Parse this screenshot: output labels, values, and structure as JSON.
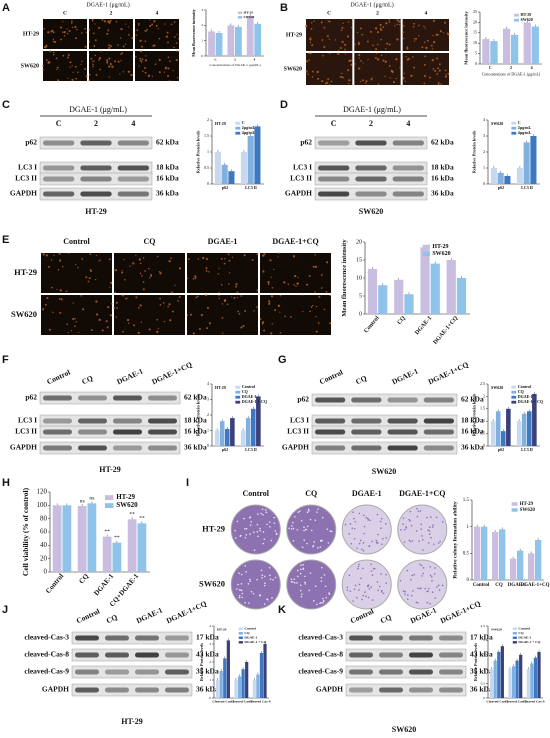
{
  "panels": [
    {
      "label": "A",
      "kind": "image",
      "title": "DGAE-1 (μg/mL)",
      "columns": [
        "C",
        "2",
        "4"
      ],
      "rows": [
        "HT-29",
        "SW620"
      ],
      "chart": {
        "type": "bar",
        "ylabel": "Mean fluorescence intensity",
        "xlabel": "Concentrations of DGAE-1 (μg/mL)",
        "categories": [
          "C",
          "2",
          "4"
        ],
        "ylim": [
          0,
          3
        ],
        "yticks": [
          0,
          1,
          2,
          3
        ],
        "series": [
          {
            "name": "HT-29",
            "color": "#c9bde0",
            "values": [
              1.6,
              2.0,
              2.6
            ]
          },
          {
            "name": "SW620",
            "color": "#8fc3ea",
            "values": [
              1.5,
              1.9,
              2.1
            ]
          }
        ]
      }
    },
    {
      "label": "B",
      "kind": "image",
      "title": "DGAE-1 (μg/mL)",
      "columns": [
        "C",
        "2",
        "4"
      ],
      "rows": [
        "HT-29",
        "SW620"
      ],
      "chart": {
        "type": "bar",
        "ylabel": "Mean fluorescence intensity",
        "xlabel": "Concentrations of DGAE-1 (μg/mL)",
        "categories": [
          "C",
          "2",
          "4"
        ],
        "ylim": [
          0,
          25
        ],
        "yticks": [
          0,
          5,
          10,
          15,
          20,
          25
        ],
        "series": [
          {
            "name": "HT-29",
            "color": "#c9bde0",
            "values": [
              12,
              17,
              20
            ]
          },
          {
            "name": "SW620",
            "color": "#8fc3ea",
            "values": [
              11,
              14,
              18
            ]
          }
        ]
      }
    },
    {
      "label": "C",
      "kind": "blot",
      "title": "DGAE-1 (μg/mL)",
      "columns": [
        "C",
        "2",
        "4"
      ],
      "rows": [
        "p62",
        "LC3 I",
        "LC3 II",
        "GAPDH"
      ],
      "kda": [
        "62 kDa",
        "18 kDa",
        "16 kDa",
        "36 kDa"
      ],
      "cell_line": "HT-29",
      "chart": {
        "type": "bar",
        "title": "HT-29",
        "ylabel": "Relative Protein levels",
        "categories": [
          "p62",
          "LC3 II"
        ],
        "ylim": [
          0,
          2
        ],
        "yticks": [
          0,
          0.5,
          1,
          1.5,
          2
        ],
        "series": [
          {
            "name": "C",
            "color": "#c8d8ee",
            "values": [
              1,
              1
            ]
          },
          {
            "name": "2μg/mL",
            "color": "#7fb0e0",
            "values": [
              0.6,
              1.5
            ]
          },
          {
            "name": "4μg/mL",
            "color": "#3d78c0",
            "values": [
              0.4,
              1.8
            ]
          }
        ]
      }
    },
    {
      "label": "D",
      "kind": "blot",
      "title": "DGAE-1 (μg/mL)",
      "columns": [
        "C",
        "2",
        "4"
      ],
      "rows": [
        "p62",
        "LC3 I",
        "LC3 II",
        "GAPDH"
      ],
      "kda": [
        "62 kDa",
        "18 kDa",
        "16 kDa",
        "36 kDa"
      ],
      "cell_line": "SW620",
      "chart": {
        "type": "bar",
        "title": "SW620",
        "ylabel": "Relative Protein levels",
        "categories": [
          "p62",
          "LC3 II"
        ],
        "ylim": [
          0,
          4
        ],
        "yticks": [
          0,
          1,
          2,
          3,
          4
        ],
        "series": [
          {
            "name": "C",
            "color": "#c8d8ee",
            "values": [
              1,
              1
            ]
          },
          {
            "name": "2μg/mL",
            "color": "#7fb0e0",
            "values": [
              0.7,
              2.6
            ]
          },
          {
            "name": "4μg/mL",
            "color": "#3d78c0",
            "values": [
              0.5,
              3.0
            ]
          }
        ]
      }
    },
    {
      "label": "E",
      "kind": "image",
      "columns": [
        "Control",
        "CQ",
        "DGAE-1",
        "DGAE-1+CQ"
      ],
      "rows": [
        "HT-29",
        "SW620"
      ],
      "chart": {
        "type": "bar",
        "ylabel": "Mean fluorescence intensity",
        "categories": [
          "Control",
          "CQ",
          "DGAE-1",
          "DGAE-1+CQ"
        ],
        "ylim": [
          0,
          20
        ],
        "yticks": [
          0,
          5,
          10,
          15,
          20
        ],
        "series": [
          {
            "name": "HT-29",
            "color": "#c9bde0",
            "values": [
              12.5,
              9.5,
              18.5,
              15
            ]
          },
          {
            "name": "SW620",
            "color": "#8fc3ea",
            "values": [
              8,
              5.5,
              14,
              10
            ]
          }
        ]
      }
    },
    {
      "label": "F",
      "kind": "blot",
      "columns": [
        "Control",
        "CQ",
        "DGAE-1",
        "DGAE-1+CQ"
      ],
      "rows": [
        "p62",
        "LC3 I",
        "LC3 II",
        "GAPDH"
      ],
      "kda": [
        "62 kDa",
        "18 kDa",
        "16 kDa",
        "36 kDa"
      ],
      "cell_line": "HT-29",
      "chart": {
        "type": "bar",
        "title": "HT-29",
        "ylabel": "Relative Protein levels",
        "categories": [
          "p62",
          "LC3 II"
        ],
        "ylim": [
          0,
          4
        ],
        "yticks": [
          0,
          1,
          2,
          3,
          4
        ],
        "series": [
          {
            "name": "Control",
            "color": "#c8d8ee",
            "values": [
              1,
              1
            ]
          },
          {
            "name": "CQ",
            "color": "#7fb0e0",
            "values": [
              1.6,
              1.8
            ]
          },
          {
            "name": "DGAE-1",
            "color": "#3d78c0",
            "values": [
              1.1,
              2.4
            ]
          },
          {
            "name": "DGAE-1 + CQ",
            "color": "#3b3f7a",
            "values": [
              1.8,
              3.2
            ]
          }
        ]
      }
    },
    {
      "label": "G",
      "kind": "blot",
      "columns": [
        "Control",
        "CQ",
        "DGAE-1",
        "DGAE-1+CQ"
      ],
      "rows": [
        "p62",
        "LC3 I",
        "LC3 II",
        "GAPDH"
      ],
      "kda": [
        "62 kDa",
        "18 kDa",
        "16 kDa",
        "36 kDa"
      ],
      "cell_line": "SW620",
      "chart": {
        "type": "bar",
        "title": "SW620",
        "ylabel": "Relative Protein levels",
        "categories": [
          "p62",
          "LC3 II"
        ],
        "ylim": [
          0,
          2.5
        ],
        "yticks": [
          0,
          0.5,
          1,
          1.5,
          2,
          2.5
        ],
        "series": [
          {
            "name": "Control",
            "color": "#c8d8ee",
            "values": [
              1,
              1
            ]
          },
          {
            "name": "CQ",
            "color": "#7fb0e0",
            "values": [
              1.4,
              1.3
            ]
          },
          {
            "name": "DGAE-1",
            "color": "#3d78c0",
            "values": [
              0.6,
              1.4
            ]
          },
          {
            "name": "DGAE-1 + CQ",
            "color": "#3b3f7a",
            "values": [
              1.5,
              2.1
            ]
          }
        ]
      }
    },
    {
      "label": "H",
      "kind": "chart",
      "chart": {
        "type": "bar",
        "ylabel": "Cell viability (% of control)",
        "categories": [
          "Control",
          "CQ",
          "DGAE-1",
          "CQ+DGAE-1"
        ],
        "ylim": [
          0,
          120
        ],
        "yticks": [
          0,
          20,
          40,
          60,
          80,
          100,
          120
        ],
        "series": [
          {
            "name": "HT-29",
            "color": "#c9bde0",
            "values": [
              100,
              99,
              53,
              79
            ],
            "significance": [
              null,
              "ns",
              "**",
              "**"
            ]
          },
          {
            "name": "SW620",
            "color": "#8fc3ea",
            "values": [
              100,
              103,
              44,
              73
            ],
            "significance": [
              null,
              "ns",
              "**",
              "**"
            ]
          }
        ]
      }
    },
    {
      "label": "I",
      "kind": "plate",
      "columns": [
        "Control",
        "CQ",
        "DGAE-1",
        "DGAE-1+CQ"
      ],
      "rows": [
        "HT-29",
        "SW620"
      ],
      "chart": {
        "type": "bar",
        "ylabel": "Relative colony formation ability",
        "categories": [
          "Control",
          "CQ",
          "DGAE-1",
          "DGAE-1+CQ"
        ],
        "ylim": [
          0,
          1.5
        ],
        "yticks": [
          0,
          0.5,
          1,
          1.5
        ],
        "series": [
          {
            "name": "HT-29",
            "color": "#c9bde0",
            "values": [
              1.0,
              0.9,
              0.4,
              0.5
            ]
          },
          {
            "name": "SW620",
            "color": "#8fc3ea",
            "values": [
              1.0,
              0.95,
              0.55,
              0.75
            ]
          }
        ]
      }
    },
    {
      "label": "J",
      "kind": "blot",
      "columns": [
        "Control",
        "CQ",
        "DGAE-1",
        "DGAE-1+CQ"
      ],
      "rows": [
        "cleaved-Cas-3",
        "cleaved-Cas-8",
        "cleaved-Cas-9",
        "GAPDH"
      ],
      "kda": [
        "17 kDa",
        "43 kDa",
        "35 kDa",
        "36 kDa"
      ],
      "cell_line": "HT-29",
      "chart": {
        "type": "bar",
        "title": "HT-29",
        "ylabel": "Relative Protein levels",
        "categories": [
          "Cleaved Cas-3",
          "Cleaved Cas-8",
          "Cleaved Cas-9"
        ],
        "ylim": [
          0,
          4
        ],
        "yticks": [
          0,
          1,
          2,
          3,
          4
        ],
        "series": [
          {
            "name": "Control",
            "color": "#c8d8ee",
            "values": [
              1,
              1,
              1
            ]
          },
          {
            "name": "CQ",
            "color": "#7fb0e0",
            "values": [
              1.5,
              1.2,
              1.3
            ]
          },
          {
            "name": "DGAE-1",
            "color": "#3d78c0",
            "values": [
              2.2,
              1.6,
              2.5
            ]
          },
          {
            "name": "DGAE-1 + CQ",
            "color": "#3b3f7a",
            "values": [
              3.2,
              2.0,
              3.0
            ]
          }
        ]
      }
    },
    {
      "label": "K",
      "kind": "blot",
      "columns": [
        "Control",
        "CQ",
        "DGAE-1",
        "DGAE-1+CQ"
      ],
      "rows": [
        "cleaved-Cas-3",
        "cleaved-Cas-8",
        "cleaved-Cas-9",
        "GAPDH"
      ],
      "kda": [
        "17 kDa",
        "43 kDa",
        "35 kDa",
        "36 kDa"
      ],
      "cell_line": "SW620",
      "chart": {
        "type": "bar",
        "title": "SW620",
        "ylabel": "Relative Protein levels",
        "categories": [
          "Cleaved Cas-3",
          "Cleaved Cas-8",
          "Cleaved Cas-9"
        ],
        "ylim": [
          0,
          2.5
        ],
        "yticks": [
          0,
          0.5,
          1,
          1.5,
          2,
          2.5
        ],
        "series": [
          {
            "name": "Control",
            "color": "#c8d8ee",
            "values": [
              1,
              1,
              1
            ]
          },
          {
            "name": "CQ",
            "color": "#7fb0e0",
            "values": [
              1.3,
              1.1,
              1.2
            ]
          },
          {
            "name": "DGAE-1",
            "color": "#3d78c0",
            "values": [
              1.6,
              1.3,
              1.4
            ]
          },
          {
            "name": "DGAE-1 + CQ",
            "color": "#3b3f7a",
            "values": [
              1.8,
              1.5,
              1.6
            ]
          }
        ]
      }
    }
  ]
}
